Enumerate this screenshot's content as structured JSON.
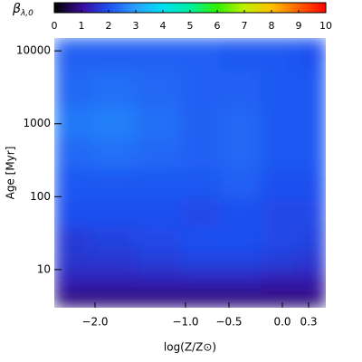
{
  "chart_data": {
    "type": "heatmap",
    "colorbar_label": "β",
    "colorbar_label_sub": "λ,0",
    "colorbar_lim": [
      0,
      10
    ],
    "colorbar_ticks": [
      0,
      1,
      2,
      3,
      4,
      5,
      6,
      7,
      8,
      9,
      10
    ],
    "colorscale": [
      "#000000",
      "#3a0a9a",
      "#1e50f0",
      "#28a0ff",
      "#00e0f0",
      "#00f0a0",
      "#30f000",
      "#c0f000",
      "#ffc000",
      "#ff6000",
      "#ff0000"
    ],
    "x_label": "log(Z/Z⊙)",
    "y_label": "Age [Myr]",
    "y_log": true,
    "xlim": [
      -2.45,
      0.5
    ],
    "xticks": [
      {
        "value": -2.0,
        "label": "−2.0"
      },
      {
        "value": -1.0,
        "label": "−1.0"
      },
      {
        "value": -0.5,
        "label": "−0.5"
      },
      {
        "value": 0.0,
        "label": "0.0"
      },
      0.3
    ],
    "ylim": [
      3,
      15000
    ],
    "yticks": [
      10,
      100,
      1000,
      10000
    ],
    "x": [
      -2.3,
      -1.8,
      -1.3,
      -0.8,
      -0.4,
      0.0,
      0.35
    ],
    "y": [
      4,
      7,
      12,
      25,
      60,
      150,
      400,
      1000,
      3000,
      10000
    ],
    "z": [
      [
        0.8,
        0.8,
        0.8,
        0.8,
        0.8,
        0.8,
        0.8
      ],
      [
        1.3,
        1.3,
        1.3,
        1.3,
        1.3,
        1.2,
        1.2
      ],
      [
        1.6,
        1.6,
        1.7,
        1.8,
        1.8,
        1.7,
        1.6
      ],
      [
        1.7,
        1.8,
        1.9,
        2.0,
        2.0,
        1.9,
        1.8
      ],
      [
        2.0,
        2.0,
        2.0,
        1.9,
        2.0,
        1.9,
        1.9
      ],
      [
        2.1,
        2.1,
        2.1,
        2.1,
        2.2,
        2.0,
        2.0
      ],
      [
        2.3,
        2.4,
        2.3,
        2.2,
        2.3,
        2.1,
        2.1
      ],
      [
        2.5,
        2.6,
        2.4,
        2.2,
        2.3,
        2.1,
        2.1
      ],
      [
        2.3,
        2.4,
        2.3,
        2.2,
        2.2,
        2.1,
        2.1
      ],
      [
        2.2,
        2.2,
        2.2,
        2.2,
        2.1,
        2.1,
        2.0
      ]
    ]
  }
}
